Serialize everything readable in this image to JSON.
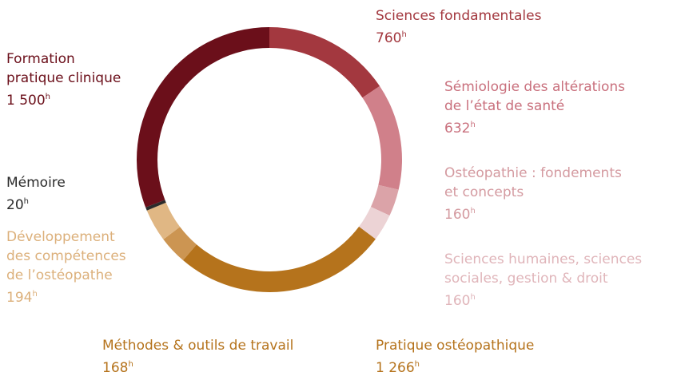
{
  "chart_data": {
    "type": "donut",
    "categories": [
      "Sciences fondamentales",
      "Sémiologie des altérations\nde l’état de santé",
      "Ostéopathie : fondements\net concepts",
      "Sciences humaines, sciences\nsociales, gestion & droit",
      "Pratique ostéopathique",
      "Méthodes & outils de travail",
      "Développement\ndes compétences\nde l’ostéopathe",
      "Mémoire",
      "Formation\npratique clinique"
    ],
    "values": [
      760,
      632,
      160,
      160,
      1266,
      168,
      194,
      20,
      1500
    ],
    "value_labels": [
      "760",
      "632",
      "160",
      "160",
      "1 266",
      "168",
      "194",
      "20",
      "1 500"
    ],
    "unit": "h",
    "colors": [
      "#a3383f",
      "#d0808a",
      "#dba3a8",
      "#ecd3d5",
      "#b5731c",
      "#cc9552",
      "#e0b784",
      "#2b2b2b",
      "#6b0f1a"
    ],
    "label_colors": [
      "#a3383f",
      "#c9707d",
      "#d49aa0",
      "#e0b5ba",
      "#b5731c",
      "#b5731c",
      "#dcb07b",
      "#2b2b2b",
      "#6b0f1a"
    ]
  }
}
